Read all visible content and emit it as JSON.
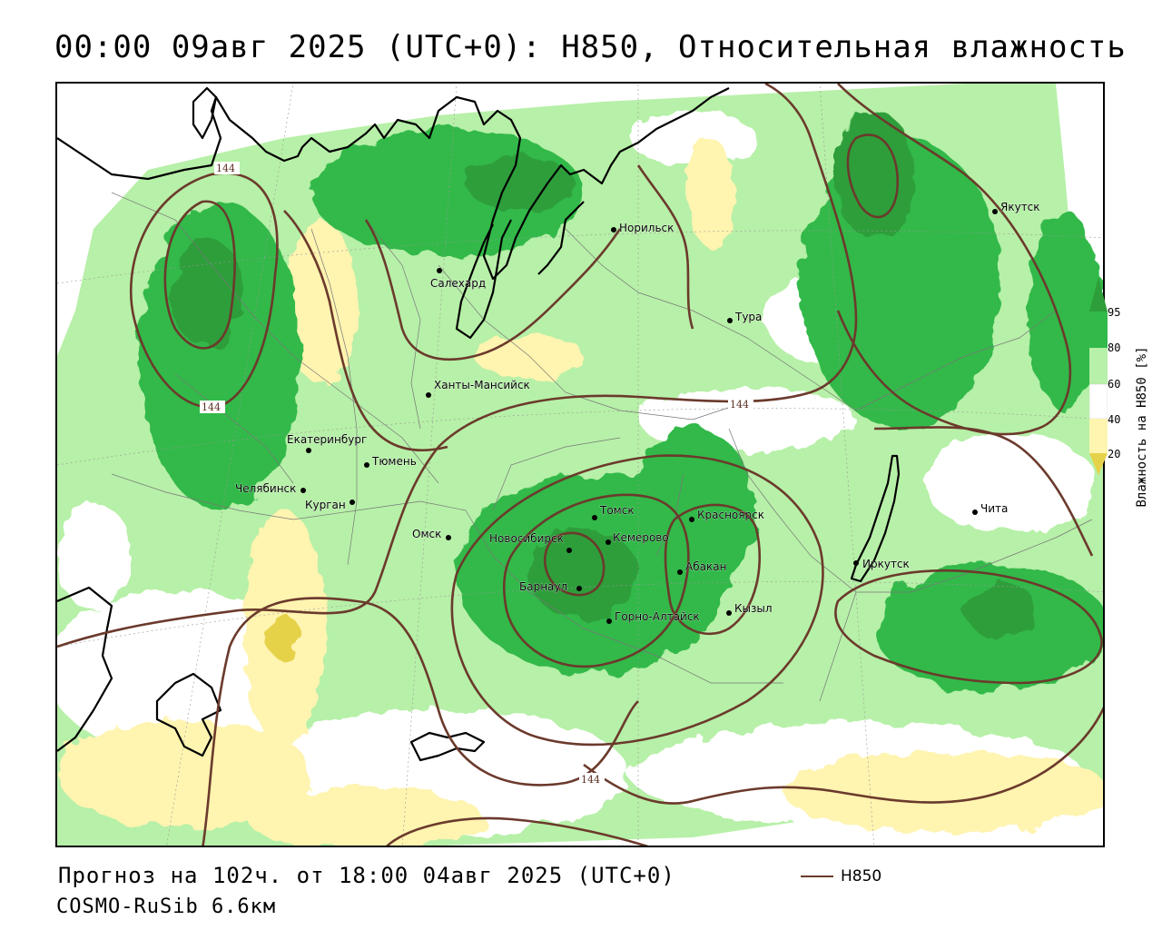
{
  "title": "00:00 09авг 2025 (UTC+0): H850, Относительная влажность",
  "forecast_line": "Прогноз на 102ч. от 18:00 04авг 2025 (UTC+0)",
  "model_line": "COSMO-RuSib 6.6км",
  "legend": {
    "line_label": "H850",
    "line_color": "#6b3a2c"
  },
  "colorbar": {
    "title": "Влажность на H850 [%]",
    "ticks": [
      "95",
      "80",
      "60",
      "40",
      "20"
    ],
    "colors": {
      "above_95": "#2e9e3a",
      "80_95": "#31b94a",
      "60_80": "#b7f0a8",
      "40_60": "#ffffff",
      "20_40": "#fff4b0",
      "below_20": "#e6d24a"
    }
  },
  "contour_label": "144",
  "cities": [
    "Якутск",
    "Норильск",
    "Салехард",
    "Тура",
    "Ханты-Мансийск",
    "Екатеринбург",
    "Тюмень",
    "Челябинск",
    "Курган",
    "Омск",
    "Томск",
    "Красноярск",
    "Новосибирск",
    "Кемерово",
    "Абакан",
    "Барнаул",
    "Иркутск",
    "Чита",
    "Горно-Алтайск",
    "Кызыл"
  ]
}
